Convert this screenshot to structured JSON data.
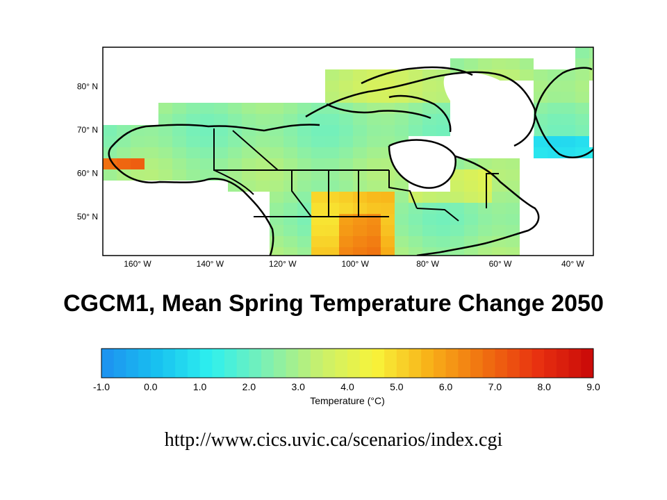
{
  "map": {
    "title": "CGCM1, Mean Spring Temperature Change 2050",
    "lat_ticks": [
      "80° N",
      "70° N",
      "60° N",
      "50° N"
    ],
    "lon_ticks": [
      "160° W",
      "140° W",
      "120° W",
      "100° W",
      "80° W",
      "60° W",
      "40° W"
    ],
    "lon_range": [
      -170,
      -40
    ],
    "lat_range": [
      40,
      90
    ],
    "quantity": "mean spring temperature change (°C)",
    "outline_color": "#000000"
  },
  "colorbar": {
    "label": "Temperature (°C)",
    "ticks": [
      "-1.0",
      "0.0",
      "1.0",
      "2.0",
      "3.0",
      "4.0",
      "5.0",
      "6.0",
      "7.0",
      "8.0",
      "9.0"
    ],
    "range": [
      -1.0,
      9.0
    ],
    "colors": [
      "#1e8ff0",
      "#18c0f0",
      "#2ef0ee",
      "#7cf0b4",
      "#c8f06c",
      "#f8f43a",
      "#f8b018",
      "#f07010",
      "#e83010",
      "#c80808"
    ]
  },
  "source": {
    "url": "http://www.cics.uvic.ca/scenarios/index.cgi"
  }
}
